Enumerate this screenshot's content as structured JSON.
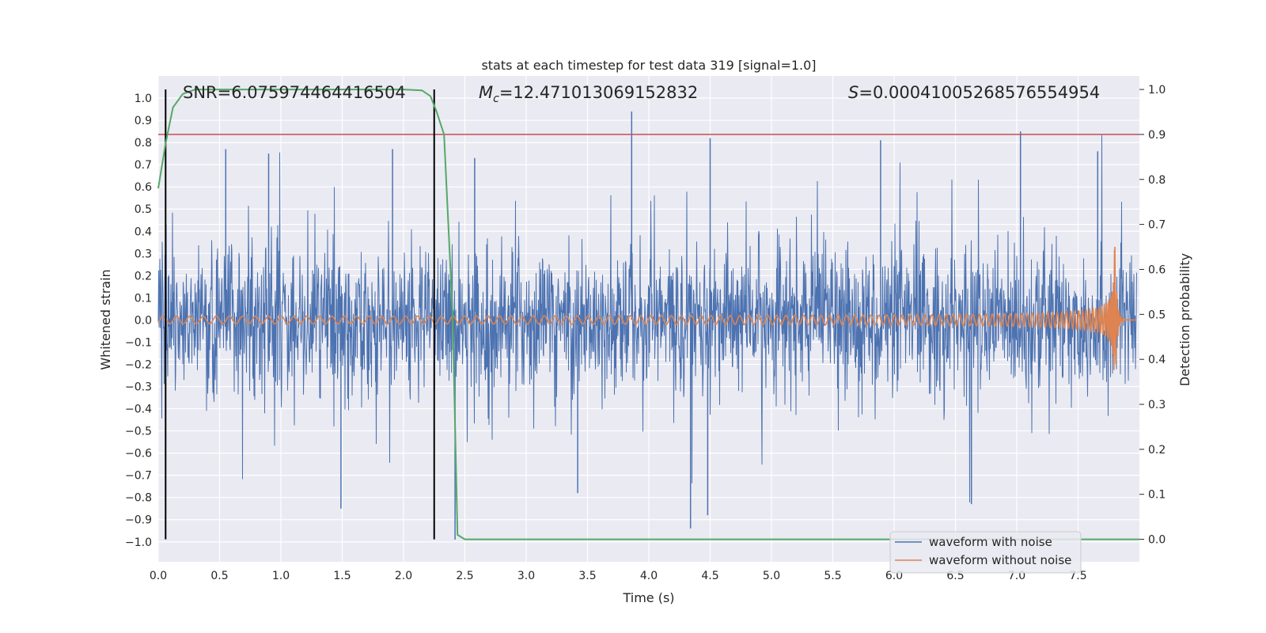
{
  "chart_data": {
    "type": "line",
    "title": "stats at each timestep for test data 319 [signal=1.0]",
    "xlabel": "Time (s)",
    "ylabel": "Whitened strain",
    "y2label": "Detection probability",
    "xlim": [
      0.0,
      8.0
    ],
    "ylim": [
      -1.09,
      1.1
    ],
    "y2lim": [
      -0.05,
      1.03
    ],
    "xticks": [
      "0.0",
      "0.5",
      "1.0",
      "1.5",
      "2.0",
      "2.5",
      "3.0",
      "3.5",
      "4.0",
      "4.5",
      "5.0",
      "5.5",
      "6.0",
      "6.5",
      "7.0",
      "7.5"
    ],
    "yticks": [
      "1.0",
      "0.9",
      "0.8",
      "0.7",
      "0.6",
      "0.5",
      "0.4",
      "0.3",
      "0.2",
      "0.1",
      "0.0",
      "−0.1",
      "−0.2",
      "−0.3",
      "−0.4",
      "−0.5",
      "−0.6",
      "−0.7",
      "−0.8",
      "−0.9",
      "−1.0"
    ],
    "y2ticks": [
      "1.0",
      "0.9",
      "0.8",
      "0.7",
      "0.6",
      "0.5",
      "0.4",
      "0.3",
      "0.2",
      "0.1",
      "0.0"
    ],
    "threshold": 0.9,
    "vlines": [
      0.06,
      2.25
    ],
    "annotations": {
      "snr": "SNR=6.075974464416504",
      "mc_symbol": "M",
      "mc_sub": "c",
      "mc_value": "=12.471013069152832",
      "s_symbol": "S",
      "s_value": "=0.00041005268576554954"
    },
    "series": [
      {
        "name": "waveform with noise",
        "color": "#4c72b0",
        "noise_std": 0.16,
        "spikes": [
          [
            0.55,
            0.77
          ],
          [
            0.9,
            0.75
          ],
          [
            1.49,
            -0.85
          ],
          [
            1.91,
            0.77
          ],
          [
            2.42,
            -0.99
          ],
          [
            2.58,
            0.73
          ],
          [
            3.42,
            -0.78
          ],
          [
            3.86,
            0.94
          ],
          [
            4.34,
            -0.94
          ],
          [
            4.48,
            -0.88
          ],
          [
            4.5,
            0.82
          ],
          [
            5.89,
            0.81
          ],
          [
            6.63,
            -0.83
          ],
          [
            7.03,
            0.85
          ],
          [
            7.66,
            0.76
          ]
        ]
      },
      {
        "name": "waveform without noise",
        "color": "#dd8452",
        "merger_time": 7.8,
        "peak": 0.33
      },
      {
        "name": "detection probability",
        "color": "#55a868",
        "x": [
          0.0,
          0.06,
          0.12,
          0.2,
          0.3,
          0.4,
          0.6,
          2.0,
          2.15,
          2.22,
          2.27,
          2.33,
          2.4,
          2.44,
          2.5,
          2.6,
          8.0
        ],
        "y": [
          0.78,
          0.88,
          0.96,
          0.99,
          1.0,
          1.0,
          1.0,
          1.0,
          0.998,
          0.985,
          0.95,
          0.9,
          0.5,
          0.01,
          0.0,
          0.0,
          0.0
        ]
      }
    ],
    "legend": {
      "location": "lower right",
      "entries": [
        "waveform with noise",
        "waveform without noise"
      ]
    }
  }
}
